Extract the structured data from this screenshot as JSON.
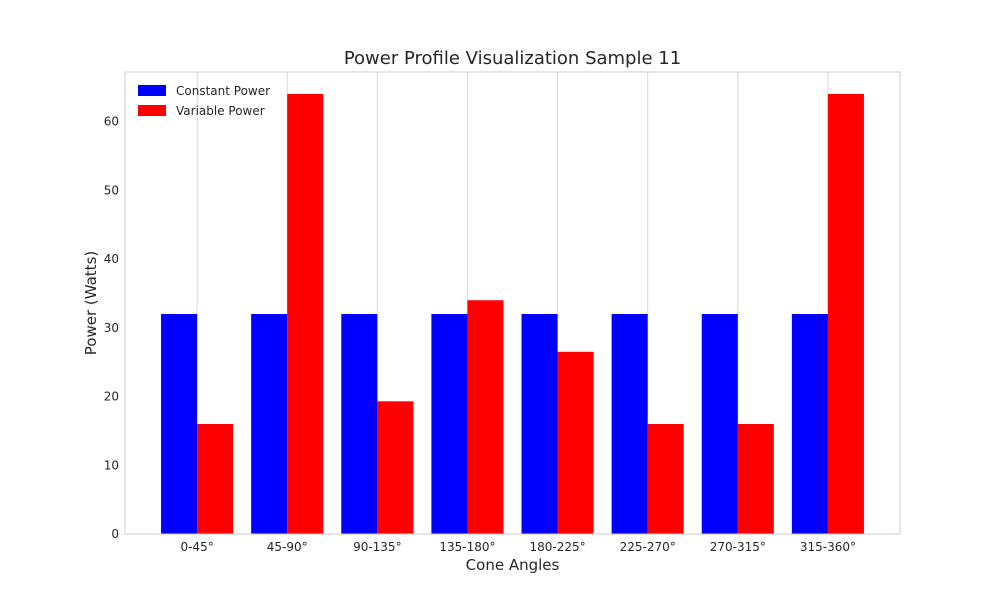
{
  "chart_data": {
    "type": "bar",
    "title": "Power Profile Visualization Sample 11",
    "xlabel": "Cone Angles",
    "ylabel": "Power (Watts)",
    "categories": [
      "0-45°",
      "45-90°",
      "90-135°",
      "135-180°",
      "180-225°",
      "225-270°",
      "270-315°",
      "315-360°"
    ],
    "series": [
      {
        "name": "Constant Power",
        "color": "#0000ff",
        "values": [
          32,
          32,
          32,
          32,
          32,
          32,
          32,
          32
        ]
      },
      {
        "name": "Variable Power",
        "color": "#ff0000",
        "values": [
          16,
          64,
          19.3,
          34,
          26.5,
          16,
          16,
          64
        ]
      }
    ],
    "ylim": [
      0,
      67.2
    ],
    "yticks": [
      0,
      10,
      20,
      30,
      40,
      50,
      60
    ],
    "grid": true,
    "legend_position": "upper-left"
  }
}
